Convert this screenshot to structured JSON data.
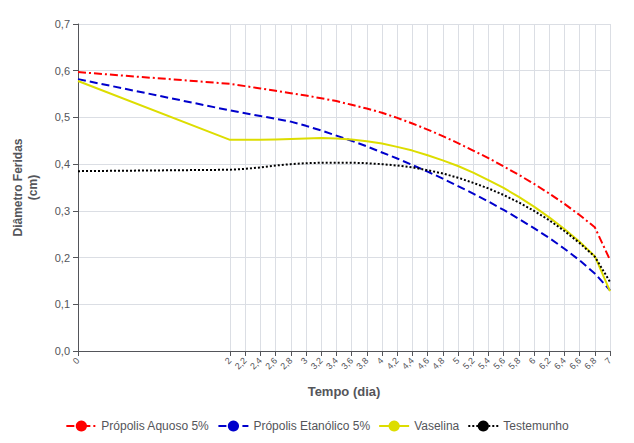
{
  "chart_data": {
    "type": "line",
    "xlabel": "Tempo (dia)",
    "ylabel": "Diâmetro Feridas\n(cm)",
    "xlim": [
      0,
      7
    ],
    "ylim": [
      0.0,
      0.7
    ],
    "xticks": [
      0,
      2,
      {
        "value": 2.2,
        "label": "2,2"
      },
      {
        "value": 2.4,
        "label": "2,4"
      },
      {
        "value": 2.6,
        "label": "2,6"
      },
      {
        "value": 2.8,
        "label": "2,8"
      },
      3,
      {
        "value": 3.2,
        "label": "3,2"
      },
      {
        "value": 3.4,
        "label": "3,4"
      },
      {
        "value": 3.6,
        "label": "3,6"
      },
      {
        "value": 3.8,
        "label": "3,8"
      },
      4,
      {
        "value": 4.2,
        "label": "4,2"
      },
      {
        "value": 4.4,
        "label": "4,4"
      },
      {
        "value": 4.6,
        "label": "4,6"
      },
      {
        "value": 4.8,
        "label": "4,8"
      },
      5,
      {
        "value": 5.2,
        "label": "5,2"
      },
      {
        "value": 5.4,
        "label": "5,4"
      },
      {
        "value": 5.6,
        "label": "5,6"
      },
      {
        "value": 5.8,
        "label": "5,8"
      },
      6,
      {
        "value": 6.2,
        "label": "6,2"
      },
      {
        "value": 6.4,
        "label": "6,4"
      },
      {
        "value": 6.6,
        "label": "6,6"
      },
      {
        "value": 6.8,
        "label": "6,8"
      },
      7
    ],
    "yticks": [
      {
        "value": 0.0,
        "label": "0,0"
      },
      {
        "value": 0.1,
        "label": "0,1"
      },
      {
        "value": 0.2,
        "label": "0,2"
      },
      {
        "value": 0.3,
        "label": "0,3"
      },
      {
        "value": 0.4,
        "label": "0,4"
      },
      {
        "value": 0.5,
        "label": "0,5"
      },
      {
        "value": 0.6,
        "label": "0,6"
      },
      {
        "value": 0.7,
        "label": "0,7"
      }
    ],
    "grid": true,
    "legend": "bottom",
    "x": [
      0,
      2,
      2.2,
      2.4,
      2.6,
      2.8,
      3,
      3.2,
      3.4,
      3.6,
      3.8,
      4,
      4.2,
      4.4,
      4.6,
      4.8,
      5,
      5.2,
      5.4,
      5.6,
      5.8,
      6,
      6.2,
      6.4,
      6.6,
      6.8,
      7
    ],
    "series": [
      {
        "name": "Própolis Aquoso 5%",
        "color": "#ff0000",
        "line_style": "dashdot",
        "values": [
          0.597,
          0.572,
          0.567,
          0.562,
          0.557,
          0.552,
          0.547,
          0.541,
          0.535,
          0.527,
          0.519,
          0.51,
          0.499,
          0.487,
          0.474,
          0.46,
          0.445,
          0.429,
          0.413,
          0.395,
          0.377,
          0.358,
          0.337,
          0.315,
          0.291,
          0.265,
          0.195
        ]
      },
      {
        "name": "Própolis Etanólico 5%",
        "color": "#0000cc",
        "line_style": "dashed",
        "values": [
          0.582,
          0.515,
          0.509,
          0.503,
          0.497,
          0.491,
          0.482,
          0.472,
          0.461,
          0.45,
          0.438,
          0.425,
          0.412,
          0.398,
          0.384,
          0.369,
          0.353,
          0.337,
          0.32,
          0.302,
          0.283,
          0.263,
          0.242,
          0.219,
          0.194,
          0.166,
          0.13
        ]
      },
      {
        "name": "Vaselina",
        "color": "#dddd00",
        "line_style": "solid",
        "values": [
          0.578,
          0.452,
          0.452,
          0.452,
          0.453,
          0.454,
          0.455,
          0.456,
          0.455,
          0.453,
          0.449,
          0.444,
          0.437,
          0.429,
          0.419,
          0.408,
          0.396,
          0.382,
          0.366,
          0.349,
          0.33,
          0.309,
          0.286,
          0.261,
          0.234,
          0.203,
          0.128
        ]
      },
      {
        "name": "Testemunho",
        "color": "#000000",
        "line_style": "dotted",
        "values": [
          0.385,
          0.388,
          0.39,
          0.393,
          0.397,
          0.4,
          0.402,
          0.403,
          0.403,
          0.403,
          0.402,
          0.4,
          0.397,
          0.393,
          0.387,
          0.38,
          0.371,
          0.36,
          0.348,
          0.334,
          0.318,
          0.3,
          0.28,
          0.257,
          0.231,
          0.202,
          0.148
        ]
      }
    ]
  }
}
